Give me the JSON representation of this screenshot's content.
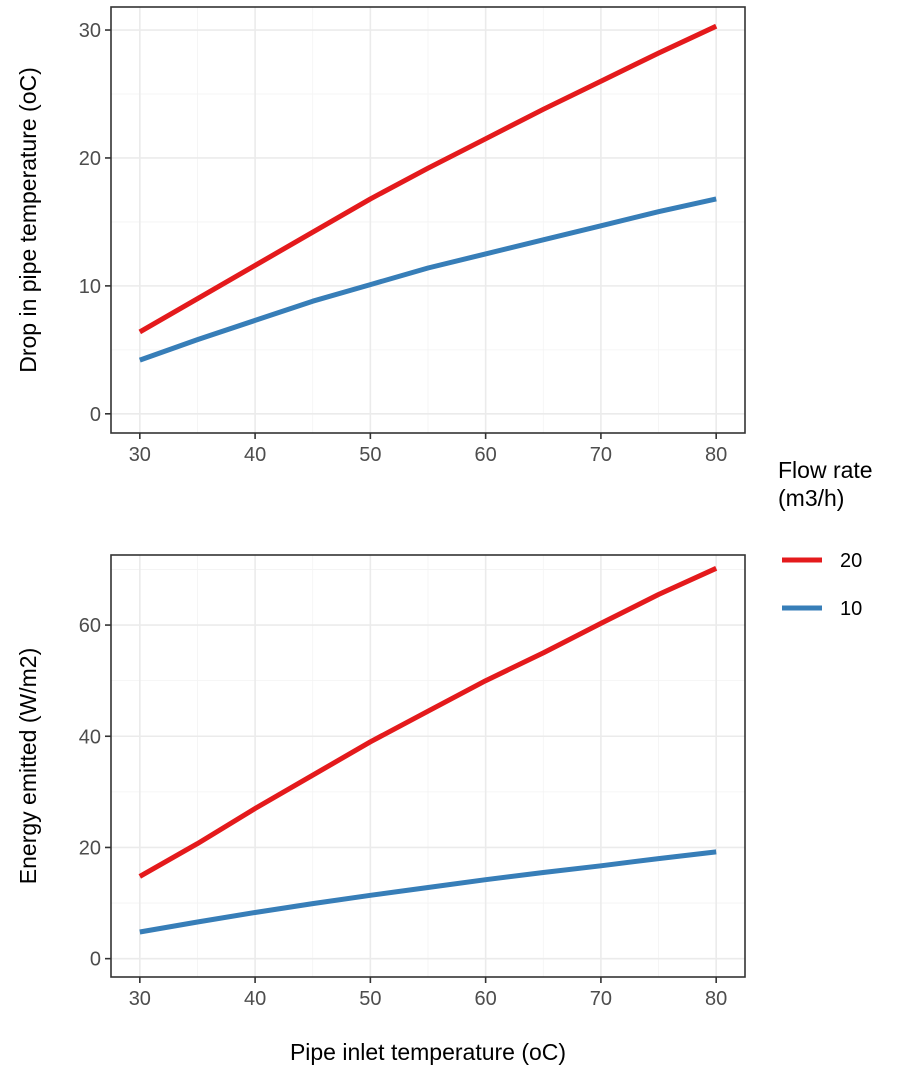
{
  "chart_data": [
    {
      "type": "line",
      "ylabel": "Drop in pipe temperature (oC)",
      "xlabel": "",
      "x": [
        30,
        35,
        40,
        45,
        50,
        55,
        60,
        65,
        70,
        75,
        80
      ],
      "xlim": [
        27.5,
        82.5
      ],
      "ylim": [
        -1.5,
        31.8
      ],
      "xticks": [
        "30",
        "40",
        "50",
        "60",
        "70",
        "80"
      ],
      "yticks": [
        "0",
        "10",
        "20",
        "30"
      ],
      "grid": true,
      "series": [
        {
          "name": "20",
          "color": "#e41a1c",
          "values": [
            6.4,
            9.0,
            11.6,
            14.2,
            16.8,
            19.2,
            21.5,
            23.8,
            26.0,
            28.2,
            30.3
          ]
        },
        {
          "name": "10",
          "color": "#377eb8",
          "values": [
            4.2,
            5.8,
            7.3,
            8.8,
            10.1,
            11.4,
            12.5,
            13.6,
            14.7,
            15.8,
            16.8
          ]
        }
      ]
    },
    {
      "type": "line",
      "ylabel": "Energy emitted (W/m2)",
      "xlabel": "Pipe inlet temperature (oC)",
      "x": [
        30,
        35,
        40,
        45,
        50,
        55,
        60,
        65,
        70,
        75,
        80
      ],
      "xlim": [
        27.5,
        82.5
      ],
      "ylim": [
        -3.3,
        72.6
      ],
      "xticks": [
        "30",
        "40",
        "50",
        "60",
        "70",
        "80"
      ],
      "yticks": [
        "0",
        "20",
        "40",
        "60"
      ],
      "grid": true,
      "series": [
        {
          "name": "20",
          "color": "#e41a1c",
          "values": [
            14.8,
            20.7,
            27.0,
            33.0,
            39.0,
            44.5,
            50.0,
            55.0,
            60.3,
            65.5,
            70.2
          ]
        },
        {
          "name": "10",
          "color": "#377eb8",
          "values": [
            4.8,
            6.6,
            8.3,
            9.9,
            11.4,
            12.8,
            14.2,
            15.5,
            16.7,
            18.0,
            19.2
          ]
        }
      ]
    }
  ],
  "legend": {
    "title_line1": "Flow rate",
    "title_line2": "(m3/h)",
    "placement": "right",
    "items": [
      {
        "label": "20",
        "color": "#e41a1c"
      },
      {
        "label": "10",
        "color": "#377eb8"
      }
    ]
  }
}
